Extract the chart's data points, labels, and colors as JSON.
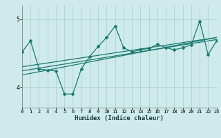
{
  "xlabel": "Humidex (Indice chaleur)",
  "xlim": [
    0,
    23
  ],
  "ylim": [
    3.7,
    5.2
  ],
  "yticks": [
    4,
    5
  ],
  "xticks": [
    0,
    1,
    2,
    3,
    4,
    5,
    6,
    7,
    8,
    9,
    10,
    11,
    12,
    13,
    14,
    15,
    16,
    17,
    18,
    19,
    20,
    21,
    22,
    23
  ],
  "background_color": "#ceeaea",
  "line_color": "#1a7a6e",
  "grid_color": "#aad4d4",
  "data_x": [
    0,
    1,
    2,
    3,
    4,
    5,
    6,
    7,
    8,
    9,
    10,
    11,
    12,
    13,
    14,
    15,
    16,
    17,
    18,
    19,
    20,
    21,
    22,
    23
  ],
  "data_y": [
    4.52,
    4.68,
    4.27,
    4.25,
    4.24,
    3.9,
    3.9,
    4.27,
    4.45,
    4.6,
    4.73,
    4.9,
    4.58,
    4.52,
    4.55,
    4.57,
    4.63,
    4.58,
    4.55,
    4.58,
    4.62,
    4.97,
    4.48,
    4.68
  ],
  "trend1_x": [
    0,
    23
  ],
  "trend1_y": [
    4.3,
    4.73
  ],
  "trend2_x": [
    0,
    23
  ],
  "trend2_y": [
    4.18,
    4.73
  ],
  "trend3_x": [
    0,
    23
  ],
  "trend3_y": [
    4.24,
    4.7
  ]
}
